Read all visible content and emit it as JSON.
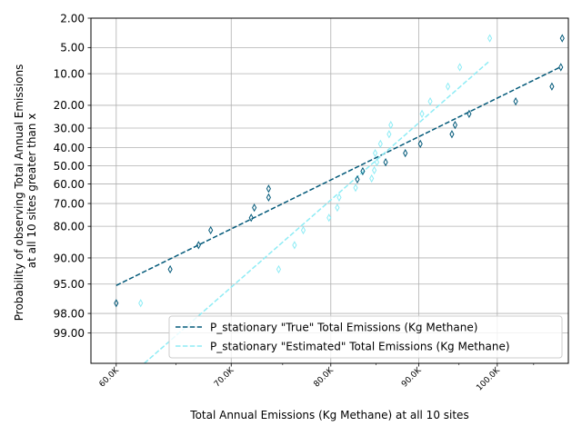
{
  "chart_data": {
    "type": "scatter",
    "xlabel": "Total Annual Emissions (Kg Methane) at all 10 sites",
    "ylabel_lines": [
      "Probability of observing Total Annual Emissions",
      "at all 10 sites greater than x"
    ],
    "x_scale": "log",
    "xlim": [
      58000,
      110000
    ],
    "x_ticks": [
      {
        "value": 60000,
        "label": "60.0K"
      },
      {
        "value": 70000,
        "label": "70.0K"
      },
      {
        "value": 80000,
        "label": "80.0K"
      },
      {
        "value": 90000,
        "label": "90.0K"
      },
      {
        "value": 100000,
        "label": "100.0K"
      }
    ],
    "y_scale": "probability",
    "y_inverted": true,
    "ylim": [
      2,
      99.7
    ],
    "y_ticks": [
      {
        "value": 2,
        "label": "2.00"
      },
      {
        "value": 5,
        "label": "5.00"
      },
      {
        "value": 10,
        "label": "10.00"
      },
      {
        "value": 20,
        "label": "20.00"
      },
      {
        "value": 30,
        "label": "30.00"
      },
      {
        "value": 40,
        "label": "40.00"
      },
      {
        "value": 50,
        "label": "50.00"
      },
      {
        "value": 60,
        "label": "60.00"
      },
      {
        "value": 70,
        "label": "70.00"
      },
      {
        "value": 80,
        "label": "80.00"
      },
      {
        "value": 90,
        "label": "90.00"
      },
      {
        "value": 95,
        "label": "95.00"
      },
      {
        "value": 98,
        "label": "98.00"
      },
      {
        "value": 99,
        "label": "99.00"
      }
    ],
    "grid": true,
    "legend_position": "lower-right",
    "series": [
      {
        "name": "P_stationary \"True\" Total Emissions (Kg Methane)",
        "color": "#045a7a",
        "marker": "thin_diamond",
        "points": [
          {
            "x": 60000,
            "y": 97.2
          },
          {
            "x": 64500,
            "y": 92.5
          },
          {
            "x": 67000,
            "y": 86.5
          },
          {
            "x": 68100,
            "y": 81.5
          },
          {
            "x": 71900,
            "y": 76.5
          },
          {
            "x": 72200,
            "y": 72.0
          },
          {
            "x": 73600,
            "y": 67.0
          },
          {
            "x": 73600,
            "y": 62.5
          },
          {
            "x": 82900,
            "y": 57.5
          },
          {
            "x": 83500,
            "y": 53.0
          },
          {
            "x": 86100,
            "y": 48.0
          },
          {
            "x": 88400,
            "y": 43.0
          },
          {
            "x": 90200,
            "y": 38.0
          },
          {
            "x": 94100,
            "y": 33.0
          },
          {
            "x": 94500,
            "y": 28.5
          },
          {
            "x": 96300,
            "y": 23.5
          },
          {
            "x": 102500,
            "y": 18.5
          },
          {
            "x": 107600,
            "y": 13.5
          },
          {
            "x": 108900,
            "y": 8.5
          },
          {
            "x": 109100,
            "y": 3.8
          }
        ],
        "fit_line": {
          "x": [
            60000,
            108800
          ],
          "y": [
            95.2,
            8.5
          ]
        }
      },
      {
        "name": "P_stationary \"Estimated\" Total Emissions (Kg Methane)",
        "color": "#8eecf5",
        "marker": "thin_diamond",
        "points": [
          {
            "x": 62000,
            "y": 97.2
          },
          {
            "x": 74600,
            "y": 92.5
          },
          {
            "x": 76200,
            "y": 86.5
          },
          {
            "x": 77100,
            "y": 81.5
          },
          {
            "x": 79800,
            "y": 76.5
          },
          {
            "x": 80700,
            "y": 72.0
          },
          {
            "x": 80900,
            "y": 67.0
          },
          {
            "x": 82700,
            "y": 62.0
          },
          {
            "x": 84500,
            "y": 57.0
          },
          {
            "x": 84800,
            "y": 52.5
          },
          {
            "x": 85100,
            "y": 48.0
          },
          {
            "x": 84900,
            "y": 43.0
          },
          {
            "x": 85500,
            "y": 38.0
          },
          {
            "x": 86500,
            "y": 33.0
          },
          {
            "x": 86700,
            "y": 28.5
          },
          {
            "x": 90400,
            "y": 23.5
          },
          {
            "x": 91400,
            "y": 18.5
          },
          {
            "x": 93600,
            "y": 13.5
          },
          {
            "x": 95100,
            "y": 8.5
          },
          {
            "x": 99000,
            "y": 3.8
          }
        ],
        "fit_line": {
          "x": [
            62300,
            99000
          ],
          "y": [
            99.7,
            7.2
          ]
        }
      }
    ]
  }
}
